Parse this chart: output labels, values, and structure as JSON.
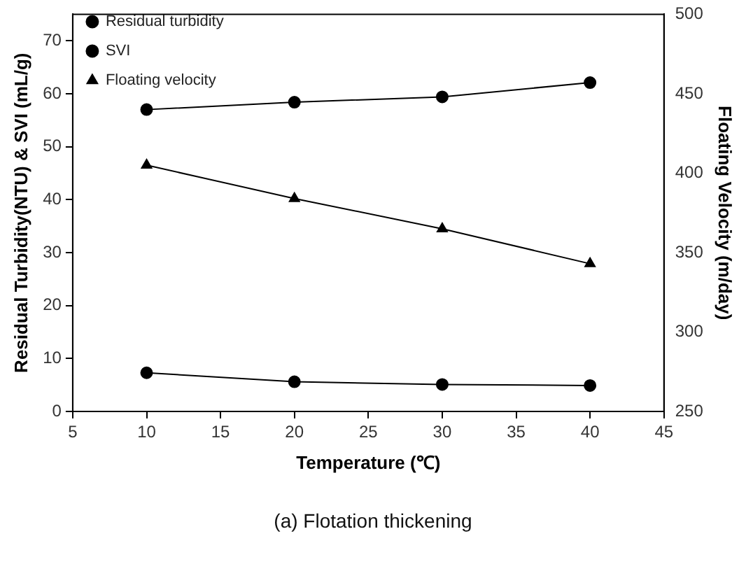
{
  "chart_data": {
    "type": "line",
    "xlabel": "Temperature (℃)",
    "ylabel": "Residual Turbidity(NTU) & SVI (mL/g)",
    "y2label": "Floating Velocity (m/day)",
    "x": [
      10,
      20,
      30,
      40
    ],
    "series": [
      {
        "name": "Residual turbidity",
        "color": "#000000",
        "marker": "circle",
        "values": [
          7.3,
          5.6,
          5.1,
          4.9
        ]
      },
      {
        "name": "SVI",
        "color": "#000000",
        "marker": "circle",
        "values": [
          57.0,
          58.4,
          59.4,
          62.1
        ]
      },
      {
        "name": "Floating velocity",
        "color": "#000000",
        "marker": "triangle",
        "axis": "y2",
        "values": [
          405,
          384,
          365,
          343
        ]
      }
    ],
    "xlim": [
      5,
      45
    ],
    "xticks": [
      5,
      10,
      15,
      20,
      25,
      30,
      35,
      40,
      45
    ],
    "ylim": [
      0,
      75
    ],
    "yticks": [
      0,
      10,
      20,
      30,
      40,
      50,
      60,
      70
    ],
    "y2lim": [
      250,
      500
    ],
    "y2ticks": [
      250,
      300,
      350,
      400,
      450,
      500
    ],
    "grid": false,
    "legend": "top left",
    "line_style": "solid",
    "annotations": [
      "(a) Flotation thickening"
    ]
  }
}
